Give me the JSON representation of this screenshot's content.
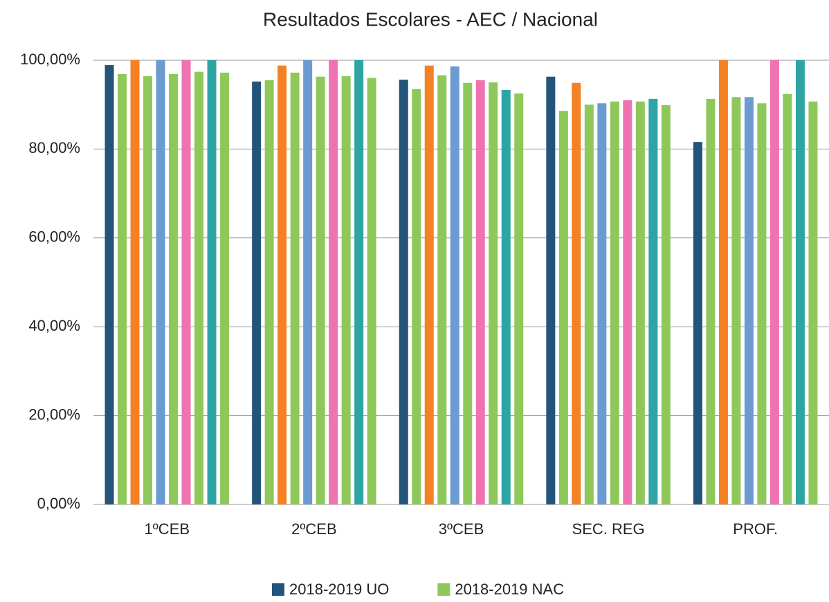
{
  "chart_data": {
    "type": "bar",
    "title": "Resultados Escolares - AEC / Nacional",
    "categories": [
      "1ºCEB",
      "2ºCEB",
      "3ºCEB",
      "SEC. REG",
      "PROF."
    ],
    "series": [
      {
        "name": "2018-2019 UO",
        "color": "#23557a",
        "values": [
          98.9,
          95.2,
          95.6,
          96.3,
          81.6
        ]
      },
      {
        "name": "2018-2019 NAC",
        "color": "#8fc85a",
        "values": [
          96.9,
          95.5,
          93.5,
          88.6,
          91.3
        ]
      },
      {
        "color": "#f58125",
        "values": [
          100,
          98.8,
          98.8,
          94.9,
          100
        ]
      },
      {
        "color": "#8fc85a",
        "values": [
          96.4,
          97.2,
          96.6,
          90.0,
          91.7
        ]
      },
      {
        "color": "#6b9bd1",
        "values": [
          100,
          100,
          98.6,
          90.3,
          91.7
        ]
      },
      {
        "color": "#8fc85a",
        "values": [
          96.9,
          96.3,
          94.9,
          90.7,
          90.3
        ]
      },
      {
        "color": "#ef73b0",
        "values": [
          100,
          100,
          95.5,
          91.0,
          100
        ]
      },
      {
        "color": "#8fc85a",
        "values": [
          97.4,
          96.4,
          95.0,
          90.7,
          92.4
        ]
      },
      {
        "color": "#2ea4a5",
        "values": [
          100,
          100,
          93.3,
          91.3,
          100
        ]
      },
      {
        "color": "#8fc85a",
        "values": [
          97.2,
          96.0,
          92.5,
          89.9,
          90.7
        ]
      }
    ],
    "ylim": [
      0,
      100
    ],
    "yticks": [
      {
        "value": 0,
        "label": "0,00%"
      },
      {
        "value": 20,
        "label": "20,00%"
      },
      {
        "value": 40,
        "label": "40,00%"
      },
      {
        "value": 60,
        "label": "60,00%"
      },
      {
        "value": 80,
        "label": "80,00%"
      },
      {
        "value": 100,
        "label": "100,00%"
      }
    ],
    "grid": true,
    "legend": "bottom"
  }
}
